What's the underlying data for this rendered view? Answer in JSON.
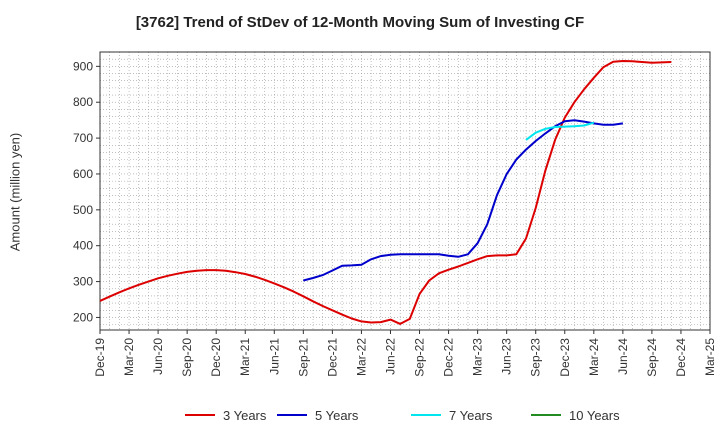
{
  "chart_data": {
    "type": "line",
    "title": "[3762]  Trend of StDev of 12-Month Moving Sum of Investing CF",
    "ylabel": "Amount (million yen)",
    "xlabel": "",
    "ylim": [
      165,
      940
    ],
    "yticks": [
      200,
      300,
      400,
      500,
      600,
      700,
      800,
      900
    ],
    "x_tick_labels": [
      "Dec-19",
      "Mar-20",
      "Jun-20",
      "Sep-20",
      "Dec-20",
      "Mar-21",
      "Jun-21",
      "Sep-21",
      "Dec-21",
      "Mar-22",
      "Jun-22",
      "Sep-22",
      "Dec-22",
      "Mar-23",
      "Jun-23",
      "Sep-23",
      "Dec-23",
      "Mar-24",
      "Jun-24",
      "Sep-24",
      "Dec-24",
      "Mar-25"
    ],
    "x_start": "2019-12",
    "grid": true,
    "legend_position": "bottom",
    "series": [
      {
        "name": "3 Years",
        "color": "#dd0000",
        "start_month": "2019-12",
        "values": [
          246,
          258,
          270,
          281,
          291,
          300,
          309,
          316,
          322,
          327,
          330,
          332,
          332,
          330,
          326,
          321,
          314,
          305,
          295,
          284,
          272,
          259,
          245,
          232,
          220,
          208,
          197,
          189,
          186,
          187,
          194,
          182,
          196,
          265,
          303,
          323,
          333,
          342,
          352,
          362,
          371,
          373,
          373,
          376,
          420,
          505,
          610,
          695,
          757,
          800,
          836,
          868,
          898,
          913,
          915,
          914,
          912,
          910,
          911,
          912
        ]
      },
      {
        "name": "5 Years",
        "color": "#0000cc",
        "start_month": "2021-09",
        "values": [
          303,
          310,
          318,
          331,
          344,
          345,
          347,
          362,
          371,
          375,
          376,
          376,
          376,
          376,
          376,
          372,
          369,
          376,
          407,
          460,
          541,
          600,
          640,
          668,
          692,
          713,
          733,
          747,
          750,
          746,
          741,
          737,
          737,
          741
        ]
      },
      {
        "name": "7 Years",
        "color": "#00e5ee",
        "start_month": "2023-08",
        "values": [
          695,
          715,
          726,
          731,
          732,
          733,
          735,
          743
        ]
      },
      {
        "name": "10 Years",
        "color": "#228b22",
        "start_month": "2024-03",
        "values": []
      }
    ]
  }
}
